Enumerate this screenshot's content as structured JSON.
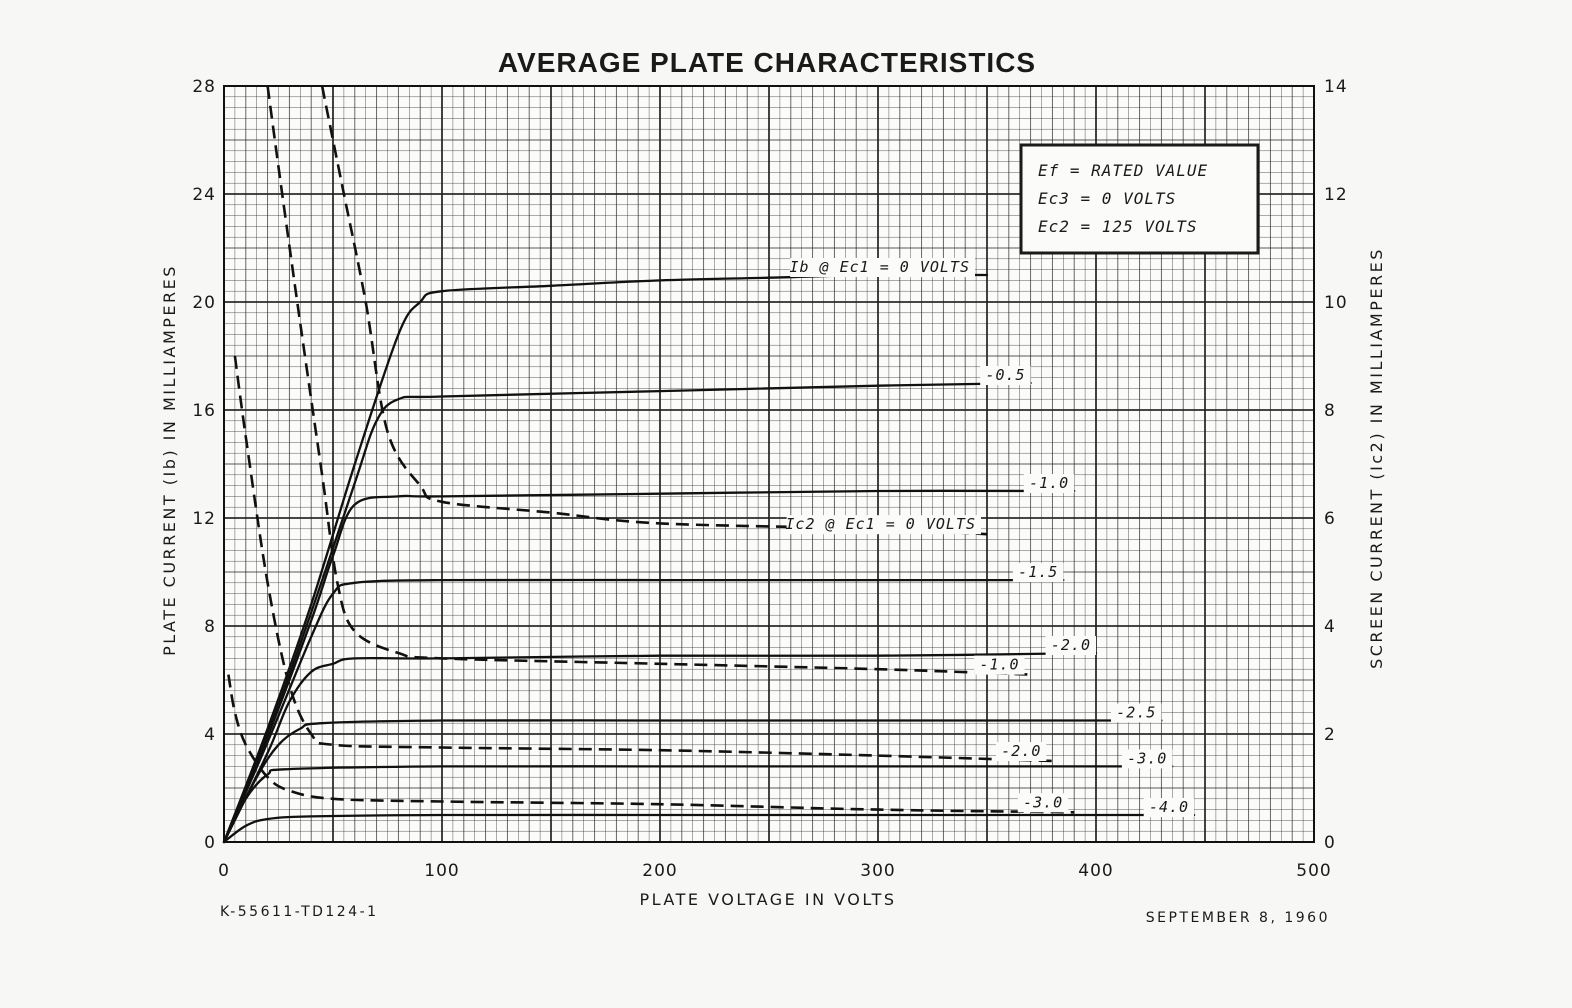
{
  "chart_data": {
    "type": "line",
    "title": "AVERAGE PLATE CHARACTERISTICS",
    "xlabel": "PLATE VOLTAGE IN VOLTS",
    "ylabel_left": "PLATE CURRENT (Ib) IN MILLIAMPERES",
    "ylabel_right": "SCREEN CURRENT (Ic2) IN MILLIAMPERES",
    "xlim": [
      0,
      500
    ],
    "ylim_left": [
      0,
      28
    ],
    "ylim_right": [
      0,
      14
    ],
    "x_ticks": [
      "0",
      "100",
      "200",
      "300",
      "400",
      "500"
    ],
    "y_left_ticks": [
      "0",
      "4",
      "8",
      "12",
      "16",
      "20",
      "24",
      "28"
    ],
    "y_right_ticks": [
      "0",
      "2",
      "4",
      "6",
      "8",
      "10",
      "12",
      "14"
    ],
    "grid": true,
    "conditions": [
      "Ef = RATED VALUE",
      "Ec3 = 0 VOLTS",
      "Ec2 = 125 VOLTS"
    ],
    "plate_series": [
      {
        "name": "Ib @ Ec1 = 0 VOLTS",
        "label": "Ib @ Ec1 = 0 VOLTS",
        "x": [
          0,
          20,
          40,
          60,
          80,
          90,
          100,
          150,
          200,
          250,
          300,
          350
        ],
        "y": [
          0,
          4.2,
          8.8,
          14.0,
          18.8,
          20.0,
          20.4,
          20.6,
          20.8,
          20.9,
          21.0,
          21.0
        ]
      },
      {
        "name": "-0.5",
        "label": "-0.5",
        "x": [
          0,
          20,
          40,
          60,
          70,
          80,
          100,
          200,
          300,
          370
        ],
        "y": [
          0,
          4.0,
          8.5,
          13.3,
          15.6,
          16.4,
          16.5,
          16.7,
          16.9,
          17.0
        ]
      },
      {
        "name": "-1.0",
        "label": "-1.0",
        "x": [
          0,
          20,
          40,
          50,
          60,
          80,
          100,
          200,
          300,
          390
        ],
        "y": [
          0,
          3.9,
          8.2,
          10.6,
          12.5,
          12.8,
          12.8,
          12.9,
          13.0,
          13.0
        ]
      },
      {
        "name": "-1.5",
        "label": "-1.5",
        "x": [
          0,
          20,
          40,
          50,
          60,
          100,
          200,
          300,
          385
        ],
        "y": [
          0,
          3.7,
          7.6,
          9.2,
          9.6,
          9.7,
          9.7,
          9.7,
          9.7
        ]
      },
      {
        "name": "-2.0",
        "label": "-2.0",
        "x": [
          0,
          20,
          30,
          40,
          50,
          60,
          100,
          200,
          300,
          400
        ],
        "y": [
          0,
          3.3,
          5.2,
          6.3,
          6.6,
          6.8,
          6.8,
          6.9,
          6.9,
          7.0
        ]
      },
      {
        "name": "-2.5",
        "label": "-2.5",
        "x": [
          0,
          15,
          25,
          35,
          45,
          100,
          200,
          300,
          430
        ],
        "y": [
          0,
          2.4,
          3.6,
          4.2,
          4.4,
          4.5,
          4.5,
          4.5,
          4.5
        ]
      },
      {
        "name": "-3.0",
        "label": "-3.0",
        "x": [
          0,
          10,
          20,
          30,
          100,
          200,
          300,
          435
        ],
        "y": [
          0,
          1.6,
          2.5,
          2.7,
          2.8,
          2.8,
          2.8,
          2.8
        ]
      },
      {
        "name": "-4.0",
        "label": "-4.0",
        "x": [
          0,
          10,
          20,
          40,
          100,
          200,
          300,
          445
        ],
        "y": [
          0,
          0.6,
          0.85,
          0.95,
          1.0,
          1.0,
          1.0,
          1.0
        ]
      }
    ],
    "screen_series": [
      {
        "name": "Ic2 @ Ec1 = 0 VOLTS",
        "label": "Ic2 @ Ec1 = 0 VOLTS",
        "x": [
          45,
          55,
          65,
          75,
          90,
          100,
          150,
          200,
          300,
          350
        ],
        "y": [
          14,
          12.0,
          10.0,
          7.6,
          6.6,
          6.3,
          6.1,
          5.9,
          5.8,
          5.7
        ]
      },
      {
        "name": "-1.0",
        "label": "-1.0",
        "x": [
          20,
          25,
          35,
          45,
          52,
          60,
          80,
          100,
          200,
          300,
          370
        ],
        "y": [
          14,
          12.5,
          9.6,
          6.8,
          4.8,
          3.9,
          3.5,
          3.4,
          3.3,
          3.2,
          3.1
        ]
      },
      {
        "name": "-2.0",
        "label": "-2.0",
        "x": [
          5,
          10,
          20,
          30,
          40,
          50,
          100,
          200,
          300,
          380
        ],
        "y": [
          9.0,
          7.5,
          4.8,
          2.9,
          2.0,
          1.8,
          1.75,
          1.7,
          1.6,
          1.5
        ]
      },
      {
        "name": "-3.0",
        "label": "-3.0",
        "x": [
          2,
          5,
          10,
          20,
          30,
          50,
          100,
          200,
          300,
          390
        ],
        "y": [
          3.1,
          2.4,
          1.8,
          1.2,
          0.95,
          0.8,
          0.75,
          0.7,
          0.6,
          0.55
        ]
      }
    ]
  },
  "footer": {
    "left": "K-55611-TD124-1",
    "right": "SEPTEMBER 8, 1960"
  }
}
